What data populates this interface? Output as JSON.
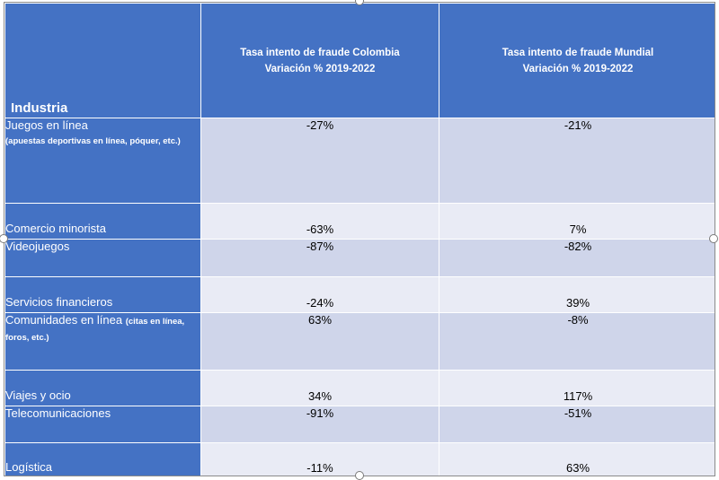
{
  "table": {
    "header": {
      "industry": "Industria",
      "colombia": [
        "Tasa intento de fraude Colombia",
        "Variación % 2019-2022"
      ],
      "mundial": [
        "Tasa intento de fraude Mundial",
        "Variación % 2019-2022"
      ]
    },
    "rows": [
      {
        "industry": "Juegos en línea",
        "note": "(apuestas deportivas en línea, póquer, etc.)",
        "colombia": "-27%",
        "mundial": "-21%"
      },
      {
        "industry": "Comercio minorista",
        "note": "",
        "colombia": "-63%",
        "mundial": "7%"
      },
      {
        "industry": "Videojuegos",
        "note": "",
        "colombia": "-87%",
        "mundial": "-82%"
      },
      {
        "industry": "Servicios financieros",
        "note": "",
        "colombia": "-24%",
        "mundial": "39%"
      },
      {
        "industry": "Comunidades en línea",
        "note": "(citas en línea, foros, etc.)",
        "colombia": "63%",
        "mundial": "-8%"
      },
      {
        "industry": "Viajes y ocio",
        "note": "",
        "colombia": "34%",
        "mundial": "117%"
      },
      {
        "industry": "Telecomunicaciones",
        "note": "",
        "colombia": "-91%",
        "mundial": "-51%"
      },
      {
        "industry": "Logística",
        "note": "",
        "colombia": "-11%",
        "mundial": "63%"
      }
    ]
  },
  "chart_data": {
    "type": "table",
    "columns": [
      "Industria",
      "Tasa intento de fraude Colombia Variación % 2019-2022",
      "Tasa intento de fraude Mundial Variación % 2019-2022"
    ],
    "categories": [
      "Juegos en línea",
      "Comercio minorista",
      "Videojuegos",
      "Servicios financieros",
      "Comunidades en línea",
      "Viajes y ocio",
      "Telecomunicaciones",
      "Logística"
    ],
    "series": [
      {
        "name": "Tasa intento de fraude Colombia Variación % 2019-2022",
        "values": [
          -27,
          -63,
          -87,
          -24,
          63,
          34,
          -91,
          -11
        ]
      },
      {
        "name": "Tasa intento de fraude Mundial Variación % 2019-2022",
        "values": [
          -21,
          7,
          -82,
          39,
          -8,
          117,
          -51,
          63
        ]
      }
    ]
  }
}
